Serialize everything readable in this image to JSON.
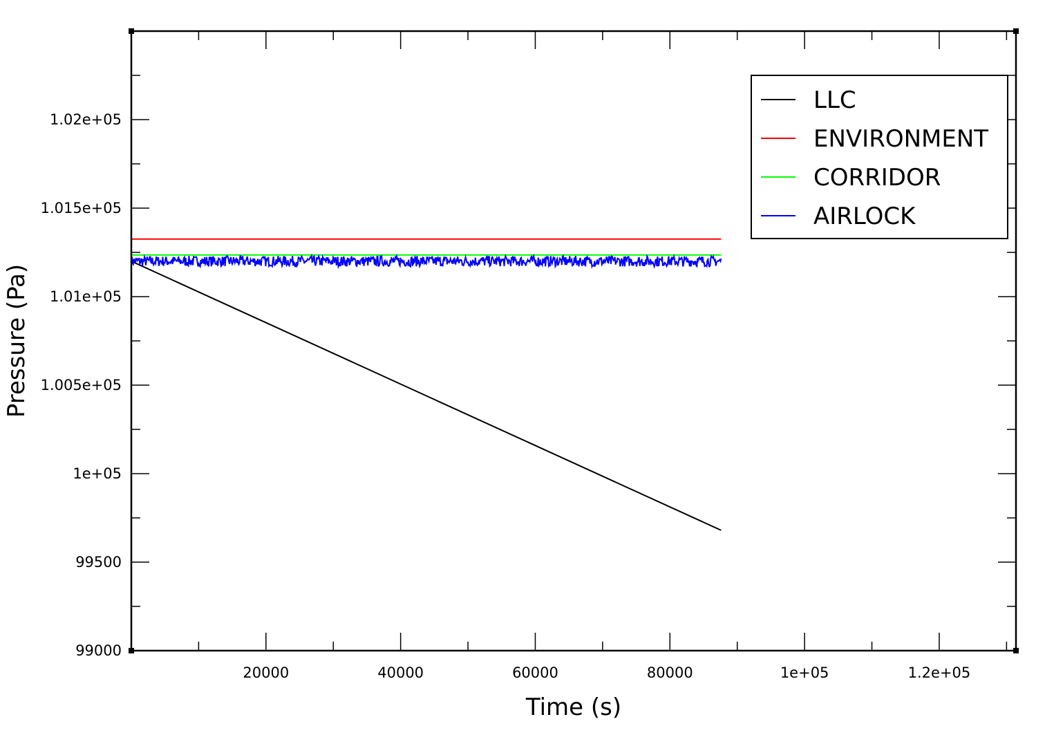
{
  "chart_data": {
    "type": "line",
    "title": "",
    "xlabel": "Time (s)",
    "ylabel": "Pressure (Pa)",
    "xlim": [
      0,
      131400
    ],
    "ylim": [
      99000,
      102500
    ],
    "x_ticks": [
      {
        "value": 20000,
        "label": "20000"
      },
      {
        "value": 40000,
        "label": "40000"
      },
      {
        "value": 60000,
        "label": "60000"
      },
      {
        "value": 80000,
        "label": "80000"
      },
      {
        "value": 100000,
        "label": "1e+05"
      },
      {
        "value": 120000,
        "label": "1.2e+05"
      }
    ],
    "x_minor_step": 10000,
    "y_ticks": [
      {
        "value": 99000,
        "label": "99000"
      },
      {
        "value": 99500,
        "label": "99500"
      },
      {
        "value": 100000,
        "label": "1e+05"
      },
      {
        "value": 100500,
        "label": "1.005e+05"
      },
      {
        "value": 101000,
        "label": "1.01e+05"
      },
      {
        "value": 101500,
        "label": "1.015e+05"
      },
      {
        "value": 102000,
        "label": "1.02e+05"
      }
    ],
    "y_minor_step": 250,
    "grid": false,
    "legend": "top-right",
    "series": [
      {
        "name": "LLC",
        "color": "#000000",
        "x": [
          0,
          87600
        ],
        "y": [
          101200,
          99680
        ]
      },
      {
        "name": "ENVIRONMENT",
        "color": "#ff0000",
        "x": [
          0,
          87600
        ],
        "y": [
          101325,
          101325
        ]
      },
      {
        "name": "CORRIDOR",
        "color": "#00ff00",
        "x": [
          0,
          87600
        ],
        "y": [
          101235,
          101235
        ]
      },
      {
        "name": "AIRLOCK",
        "color": "#0000ff",
        "x": [
          0,
          87600
        ],
        "y": [
          101200,
          101200
        ],
        "noise_amplitude": 30
      }
    ]
  }
}
